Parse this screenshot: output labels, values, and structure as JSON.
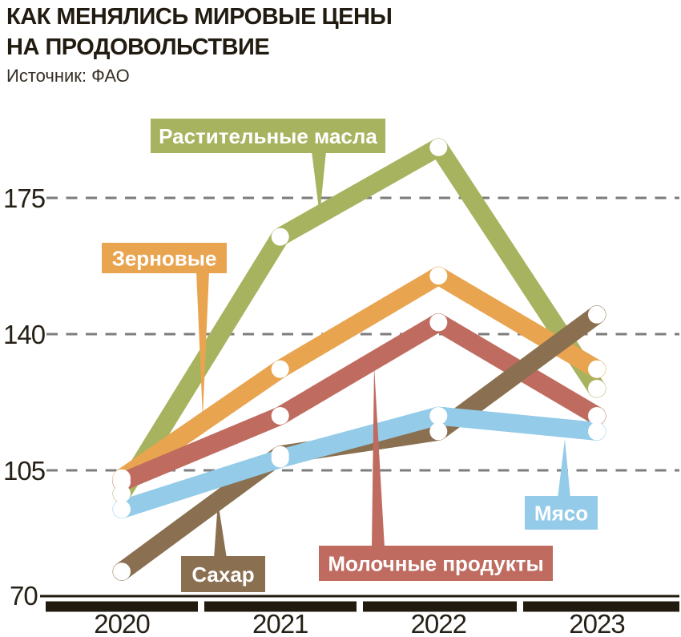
{
  "header": {
    "title": "КАК МЕНЯЛИСЬ МИРОВЫЕ ЦЕНЫ\nНА ПРОДОВОЛЬСТВИЕ",
    "source": "Источник: ФАО"
  },
  "colors": {
    "text_dark": "#211b11",
    "axis_bar": "#211a0f",
    "gridline": "#7d7d7d",
    "background": "#ffffff"
  },
  "chart_data": {
    "type": "line",
    "title": "КАК МЕНЯЛИСЬ МИРОВЫЕ ЦЕНЫ НА ПРОДОВОЛЬСТВИЕ",
    "source": "Источник: ФАО",
    "x": [
      "2020",
      "2021",
      "2022",
      "2023"
    ],
    "yticks": [
      "175",
      "140",
      "105",
      "70"
    ],
    "ytick_values": [
      175,
      140,
      105,
      70
    ],
    "ylim": [
      70,
      190
    ],
    "grid": "horizontal-dashed",
    "legend": "inline-callout-labels",
    "series": [
      {
        "key": "oils",
        "name": "Растительные масла",
        "color": "#a7b35e",
        "values": [
          99,
          165,
          188,
          126
        ]
      },
      {
        "key": "cereals",
        "name": "Зерновые",
        "color": "#e9a450",
        "values": [
          103,
          131,
          155,
          131
        ]
      },
      {
        "key": "dairy",
        "name": "Молочные продукты",
        "color": "#bf6b60",
        "values": [
          102,
          119,
          143,
          119
        ]
      },
      {
        "key": "sugar",
        "name": "Сахар",
        "color": "#8a7051",
        "values": [
          79,
          109,
          115,
          145
        ]
      },
      {
        "key": "meat",
        "name": "Мясо",
        "color": "#93cbe9",
        "values": [
          95,
          108,
          119,
          115
        ]
      }
    ]
  }
}
